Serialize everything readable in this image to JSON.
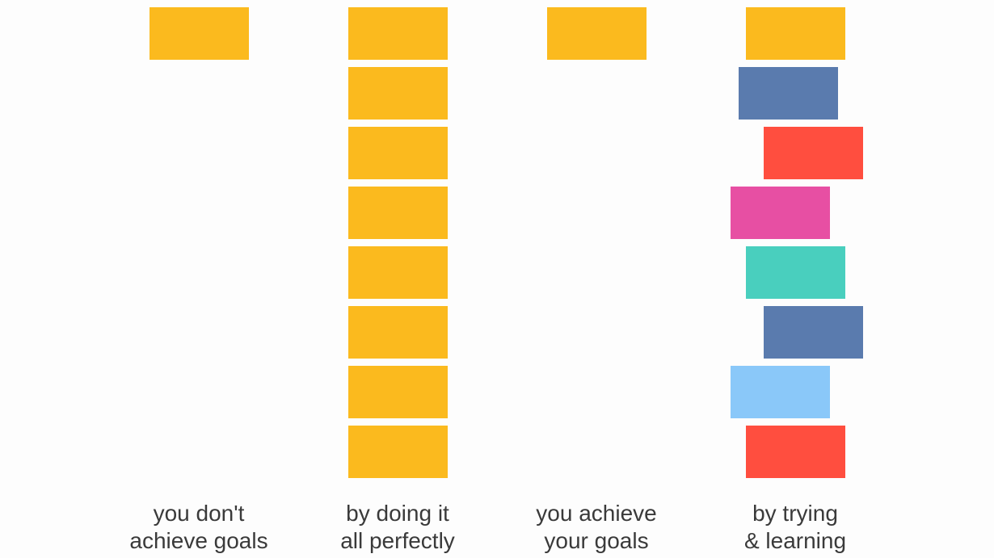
{
  "palette": {
    "yellow": "#FBBA1E",
    "blue": "#5A7BAE",
    "red": "#FF4E3F",
    "pink": "#E74FA3",
    "teal": "#49CFBE",
    "light_blue": "#8AC8F9",
    "text": "#3a3a3a",
    "background": "#fdfdfd"
  },
  "columns": [
    {
      "caption_line1": "you don't",
      "caption_line2": "achieve goals",
      "blocks": [
        "#FBBA1E"
      ]
    },
    {
      "caption_line1": "by doing it",
      "caption_line2": "all perfectly",
      "blocks": [
        "#FBBA1E",
        "#FBBA1E",
        "#FBBA1E",
        "#FBBA1E",
        "#FBBA1E",
        "#FBBA1E",
        "#FBBA1E",
        "#FBBA1E"
      ]
    },
    {
      "caption_line1": "you achieve",
      "caption_line2": "your goals",
      "blocks": [
        "#FBBA1E"
      ]
    },
    {
      "caption_line1": "by trying",
      "caption_line2": "& learning",
      "blocks": [
        "#FBBA1E",
        "#5A7BAE",
        "#FF4E3F",
        "#E74FA3",
        "#49CFBE",
        "#5A7BAE",
        "#8AC8F9",
        "#FF4E3F"
      ]
    }
  ]
}
